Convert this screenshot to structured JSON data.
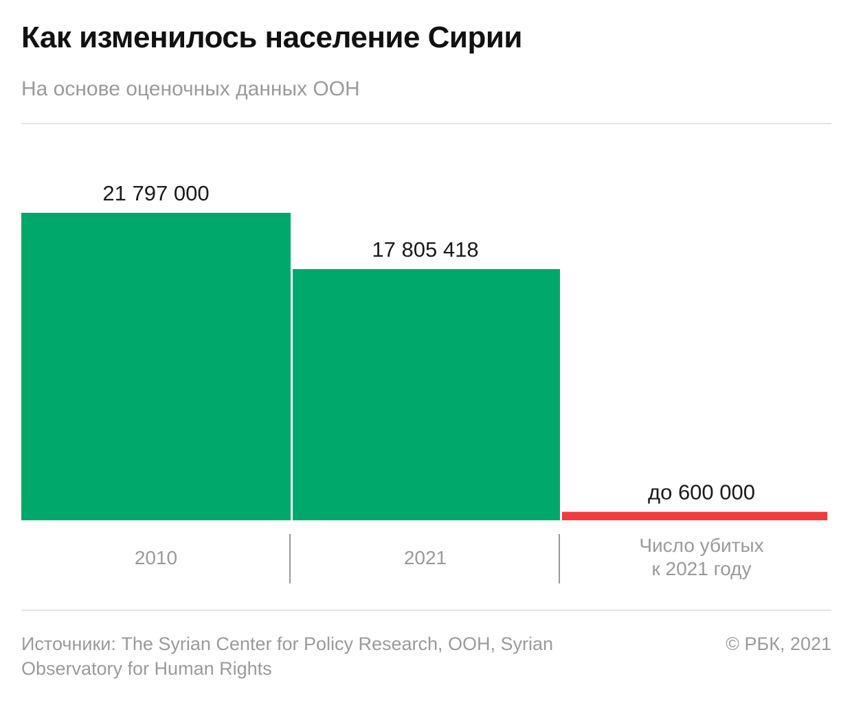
{
  "header": {
    "title": "Как изменилось население Сирии",
    "subtitle": "На основе оценочных данных ООН"
  },
  "colors": {
    "population": "#00a86b",
    "killed": "#f03c3c",
    "text": "#1a1a1a",
    "muted": "#9a9a9a",
    "divider": "#999999"
  },
  "chart_data": {
    "type": "bar",
    "title": "Как изменилось население Сирии",
    "subtitle": "На основе оценочных данных ООН",
    "categories": [
      "2010",
      "2021",
      "Число убитых к 2021 году"
    ],
    "category_lines": [
      [
        "2010"
      ],
      [
        "2021"
      ],
      [
        "Число убитых",
        "к 2021 году"
      ]
    ],
    "values": [
      21797000,
      17805418,
      600000
    ],
    "value_labels": [
      "21 797 000",
      "17 805 418",
      "до 600 000"
    ],
    "bar_colors": [
      "#00a86b",
      "#00a86b",
      "#f03c3c"
    ],
    "xlabel": "",
    "ylabel": "",
    "ylim": [
      0,
      21797000
    ],
    "grid": false,
    "legend": "none"
  },
  "footer": {
    "sources": "Источники: The Syrian Center for Policy Research, ООН, Syrian Observatory for Human Rights",
    "copyright": "© РБК, 2021"
  }
}
